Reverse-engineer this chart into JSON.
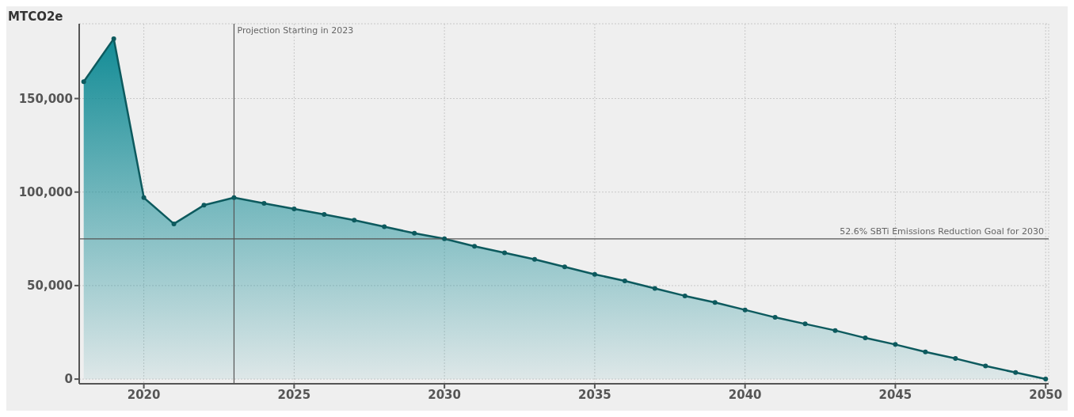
{
  "chart_data": {
    "type": "area",
    "ylabel": "MTCO2e",
    "x": [
      2018,
      2019,
      2020,
      2021,
      2022,
      2023,
      2024,
      2025,
      2026,
      2027,
      2028,
      2029,
      2030,
      2031,
      2032,
      2033,
      2034,
      2035,
      2036,
      2037,
      2038,
      2039,
      2040,
      2041,
      2042,
      2043,
      2044,
      2045,
      2046,
      2047,
      2048,
      2049,
      2050
    ],
    "series": [
      {
        "color": "#0d5a5e",
        "values": [
          159000,
          182000,
          97000,
          83000,
          93000,
          97000,
          94000,
          91000,
          88000,
          85000,
          81500,
          78000,
          75000,
          71000,
          67500,
          64000,
          60000,
          56000,
          52500,
          48500,
          44500,
          41000,
          37000,
          33000,
          29500,
          26000,
          22000,
          18500,
          14500,
          11000,
          7000,
          3500,
          0
        ]
      }
    ],
    "xlim": [
      2017.85,
      2050.1
    ],
    "xticks": [
      2020,
      2025,
      2030,
      2035,
      2040,
      2045,
      2050
    ],
    "ylim": [
      -2500,
      190000
    ],
    "yticks": [
      {
        "value": 0,
        "label": "0"
      },
      {
        "value": 50000,
        "label": "50,000"
      },
      {
        "value": 100000,
        "label": "100,000"
      },
      {
        "value": 150000,
        "label": "150,000"
      }
    ],
    "ref_lines": [
      {
        "axis": "x",
        "value": 2023,
        "label": "Projection Starting in 2023",
        "color": "#555555"
      },
      {
        "axis": "y",
        "value": 75000,
        "label": "52.6% SBTi Emissions Reduction Goal for 2030",
        "color": "#555555"
      }
    ],
    "grid": true,
    "marker": "circle",
    "line_style": "solid"
  }
}
